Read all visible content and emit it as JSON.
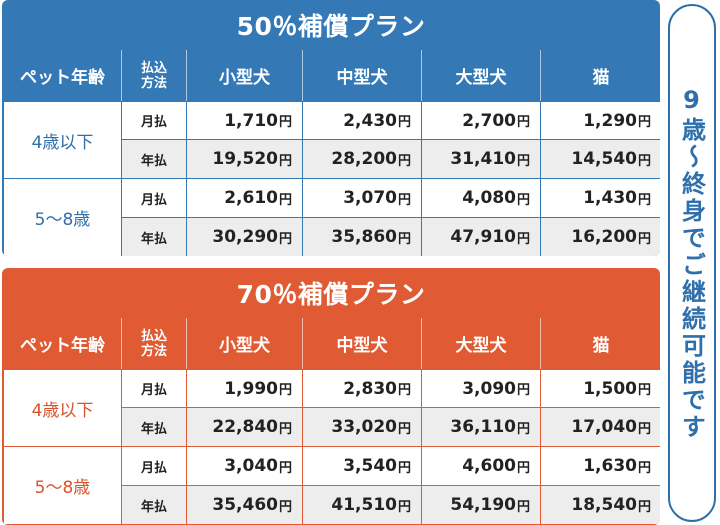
{
  "plans": [
    {
      "title": "50％補償プラン",
      "color": "#3478b6",
      "headers": {
        "pet_age": "ペット年齢",
        "payment_line1": "払込",
        "payment_line2": "方法",
        "small_dog": "小型犬",
        "medium_dog": "中型犬",
        "large_dog": "大型犬",
        "cat": "猫"
      },
      "groups": [
        {
          "age": "4歳以下",
          "rows": [
            {
              "method": "月払",
              "values": [
                "1,710",
                "2,430",
                "2,700",
                "1,290"
              ]
            },
            {
              "method": "年払",
              "values": [
                "19,520",
                "28,200",
                "31,410",
                "14,540"
              ]
            }
          ]
        },
        {
          "age": "5〜8歳",
          "rows": [
            {
              "method": "月払",
              "values": [
                "2,610",
                "3,070",
                "4,080",
                "1,430"
              ]
            },
            {
              "method": "年払",
              "values": [
                "30,290",
                "35,860",
                "47,910",
                "16,200"
              ]
            }
          ]
        }
      ]
    },
    {
      "title": "70％補償プラン",
      "color": "#e05a33",
      "headers": {
        "pet_age": "ペット年齢",
        "payment_line1": "払込",
        "payment_line2": "方法",
        "small_dog": "小型犬",
        "medium_dog": "中型犬",
        "large_dog": "大型犬",
        "cat": "猫"
      },
      "groups": [
        {
          "age": "4歳以下",
          "rows": [
            {
              "method": "月払",
              "values": [
                "1,990",
                "2,830",
                "3,090",
                "1,500"
              ]
            },
            {
              "method": "年払",
              "values": [
                "22,840",
                "33,020",
                "36,110",
                "17,040"
              ]
            }
          ]
        },
        {
          "age": "5〜8歳",
          "rows": [
            {
              "method": "月払",
              "values": [
                "3,040",
                "3,540",
                "4,600",
                "1,630"
              ]
            },
            {
              "method": "年払",
              "values": [
                "35,460",
                "41,510",
                "54,190",
                "18,540"
              ]
            }
          ]
        }
      ]
    }
  ],
  "currency_unit": "円",
  "side_note": "9歳〜終身でご継続可能です"
}
